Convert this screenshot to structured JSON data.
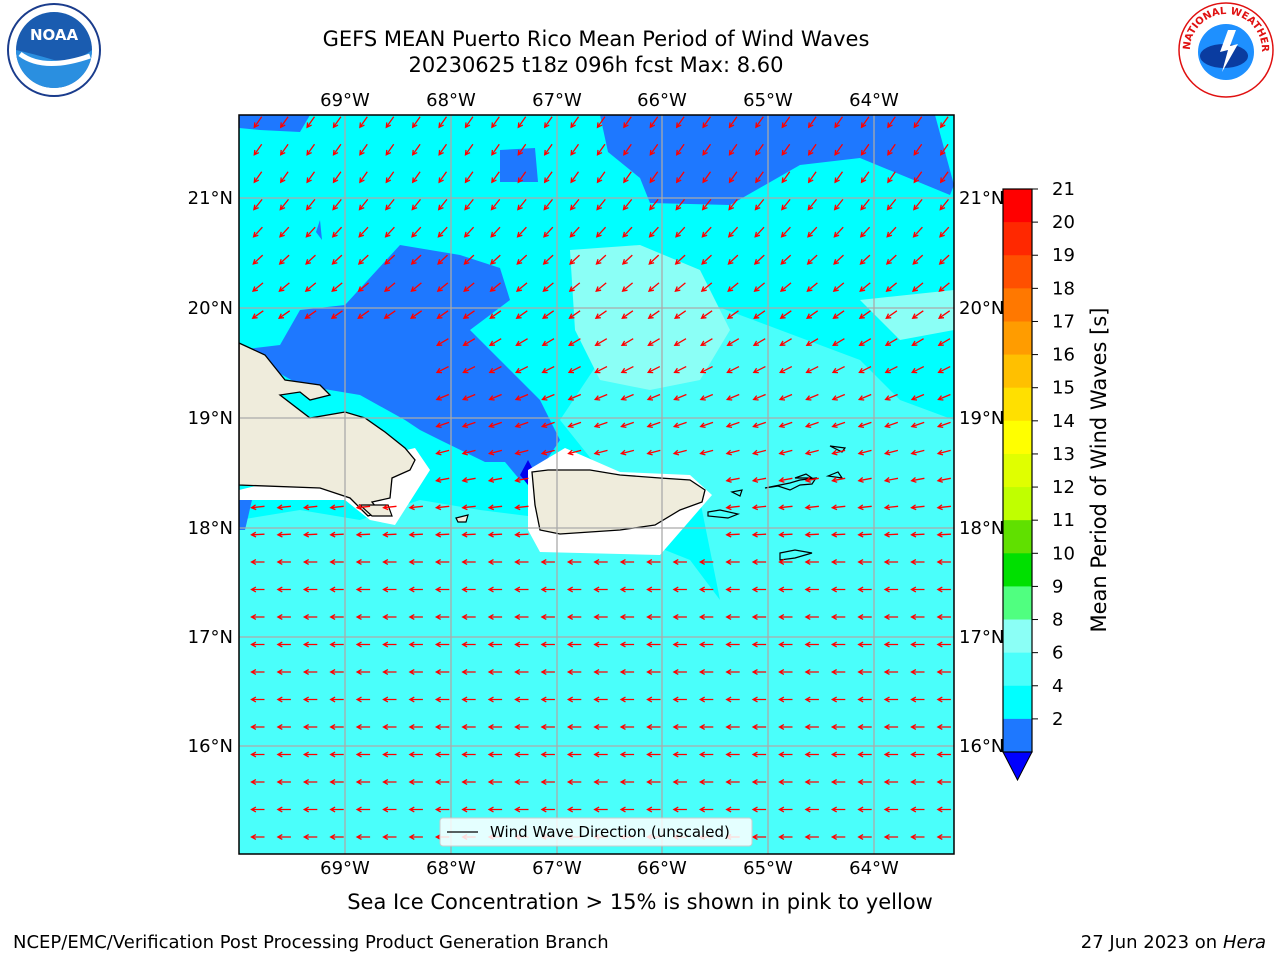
{
  "header": {
    "title": "GEFS MEAN Puerto Rico Mean Period of Wind Waves",
    "subtitle": "20230625 t18z 096h fcst   Max: 8.60"
  },
  "map": {
    "lon_ticks": [
      "69°W",
      "68°W",
      "67°W",
      "66°W",
      "65°W",
      "64°W"
    ],
    "lat_ticks": [
      "21°N",
      "20°N",
      "19°N",
      "18°N",
      "17°N",
      "16°N"
    ],
    "legend_label": "Wind Wave Direction (unscaled)",
    "arrow_color": "#ff0000",
    "land_color": "#efecdc",
    "ocean_colors": [
      "#1e78ff",
      "#00ffff",
      "#4afffb",
      "#8bfff6"
    ]
  },
  "colorbar": {
    "label": "Mean Period of Wind Waves [s]",
    "ticks": [
      "21",
      "20",
      "19",
      "18",
      "17",
      "16",
      "15",
      "14",
      "13",
      "12",
      "11",
      "10",
      "9",
      "8",
      "6",
      "4",
      "2"
    ],
    "colors": [
      "#ff0000",
      "#ff2800",
      "#ff5000",
      "#ff7800",
      "#ff9c00",
      "#ffc000",
      "#ffe000",
      "#ffff00",
      "#e0ff00",
      "#c0ff00",
      "#60e000",
      "#00e000",
      "#50ff80",
      "#8bfff6",
      "#4afffb",
      "#00ffff",
      "#1e78ff"
    ],
    "extend_color": "#0000ff"
  },
  "footer": {
    "sea_ice_note": "Sea Ice Concentration > 15% is shown in pink to yellow",
    "credit": "NCEP/EMC/Verification Post Processing Product Generation Branch",
    "date": "27 Jun 2023 on",
    "machine": "Hera"
  },
  "logos": {
    "noaa": "NOAA",
    "nws": "NATIONAL WEATHER SERVICE"
  }
}
